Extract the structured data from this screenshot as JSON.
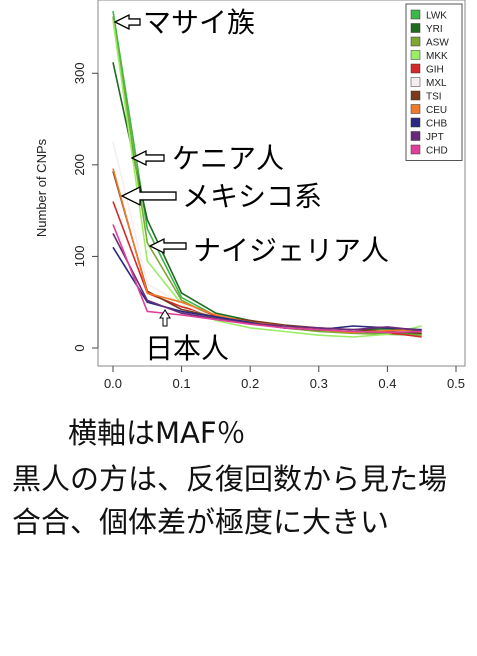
{
  "chart_data": {
    "type": "line",
    "xlabel": "",
    "ylabel": "Number of CNPs",
    "xlim": [
      0.0,
      0.5
    ],
    "ylim": [
      0,
      380
    ],
    "xticks": [
      0.0,
      0.1,
      0.2,
      0.3,
      0.4,
      0.5
    ],
    "xtick_labels": [
      "0.0",
      "0.1",
      "0.2",
      "0.3",
      "0.4",
      "0.5"
    ],
    "yticks": [
      0,
      100,
      200,
      300
    ],
    "ytick_labels": [
      "0",
      "100",
      "200",
      "300"
    ],
    "grid": false,
    "legend_position": "top-right",
    "x": [
      0.0,
      0.05,
      0.1,
      0.15,
      0.2,
      0.25,
      0.3,
      0.35,
      0.4,
      0.45
    ],
    "series": [
      {
        "name": "LWK",
        "color": "#3cb84a",
        "values": [
          368,
          130,
          55,
          35,
          28,
          24,
          20,
          18,
          16,
          15
        ]
      },
      {
        "name": "YRI",
        "color": "#1f6b20",
        "values": [
          312,
          140,
          60,
          38,
          30,
          22,
          19,
          20,
          21,
          18
        ]
      },
      {
        "name": "ASW",
        "color": "#7ea634",
        "values": [
          362,
          115,
          52,
          33,
          27,
          22,
          18,
          16,
          15,
          14
        ]
      },
      {
        "name": "MKK",
        "color": "#99ee66",
        "values": [
          358,
          95,
          48,
          30,
          22,
          18,
          14,
          12,
          15,
          24
        ]
      },
      {
        "name": "GIH",
        "color": "#d42a2a",
        "values": [
          160,
          60,
          45,
          35,
          28,
          22,
          20,
          18,
          17,
          12
        ]
      },
      {
        "name": "MXL",
        "color": "#f6eeee",
        "values": [
          225,
          70,
          48,
          33,
          27,
          23,
          21,
          19,
          18,
          17
        ]
      },
      {
        "name": "TSI",
        "color": "#7a3a1a",
        "values": [
          193,
          62,
          42,
          34,
          30,
          25,
          22,
          20,
          18,
          16
        ]
      },
      {
        "name": "CEU",
        "color": "#f07a2a",
        "values": [
          196,
          60,
          50,
          36,
          28,
          24,
          20,
          17,
          19,
          20
        ]
      },
      {
        "name": "CHB",
        "color": "#2a2a80",
        "values": [
          110,
          50,
          40,
          34,
          28,
          22,
          20,
          24,
          22,
          20
        ]
      },
      {
        "name": "JPT",
        "color": "#6a2a7a",
        "values": [
          125,
          52,
          38,
          32,
          27,
          24,
          22,
          20,
          23,
          19
        ]
      },
      {
        "name": "CHD",
        "color": "#e0409a",
        "values": [
          135,
          40,
          36,
          31,
          26,
          22,
          20,
          18,
          17,
          18
        ]
      }
    ],
    "annotations": [
      {
        "id": "maasai",
        "text": "マサイ族"
      },
      {
        "id": "kenya",
        "text": "ケニア人"
      },
      {
        "id": "mexico",
        "text": "メキシコ系"
      },
      {
        "id": "nigeria",
        "text": "ナイジェリア人"
      },
      {
        "id": "japan",
        "text": "日本人"
      }
    ]
  },
  "caption": {
    "axis_note": "横軸はMAF％",
    "body": "黒人の方は、反復回数から見た場合合、個体差が極度に大きい"
  }
}
